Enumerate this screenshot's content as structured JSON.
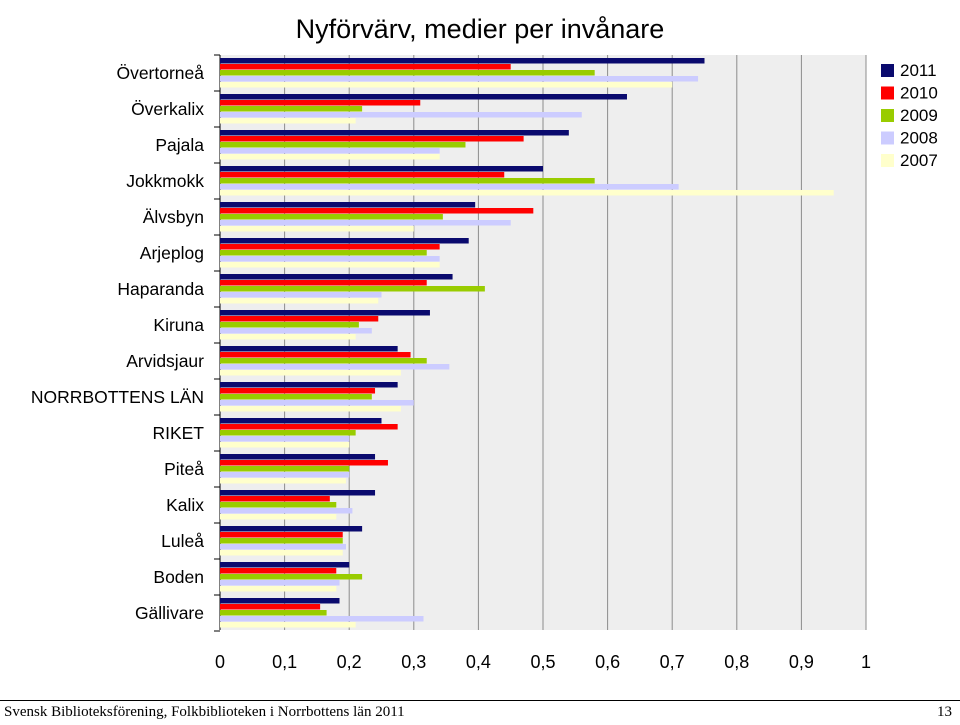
{
  "chart_data": {
    "type": "bar",
    "orientation": "horizontal",
    "title": "Nyförvärv, medier per invånare",
    "categories": [
      "Övertorneå",
      "Överkalix",
      "Pajala",
      "Jokkmokk",
      "Älvsbyn",
      "Arjeplog",
      "Haparanda",
      "Kiruna",
      "Arvidsjaur",
      "NORRBOTTENS LÄN",
      "RIKET",
      "Piteå",
      "Kalix",
      "Luleå",
      "Boden",
      "Gällivare"
    ],
    "series": [
      {
        "name": "2011",
        "color": "#0a0a6e",
        "values": [
          0.75,
          0.63,
          0.54,
          0.5,
          0.395,
          0.385,
          0.36,
          0.325,
          0.275,
          0.275,
          0.25,
          0.24,
          0.24,
          0.22,
          0.2,
          0.185
        ]
      },
      {
        "name": "2010",
        "color": "#ff0000",
        "values": [
          0.45,
          0.31,
          0.47,
          0.44,
          0.485,
          0.34,
          0.32,
          0.245,
          0.295,
          0.24,
          0.275,
          0.26,
          0.17,
          0.19,
          0.18,
          0.155
        ]
      },
      {
        "name": "2009",
        "color": "#99cc00",
        "values": [
          0.58,
          0.22,
          0.38,
          0.58,
          0.345,
          0.32,
          0.41,
          0.215,
          0.32,
          0.235,
          0.21,
          0.2,
          0.18,
          0.19,
          0.22,
          0.165
        ]
      },
      {
        "name": "2008",
        "color": "#ccccff",
        "values": [
          0.74,
          0.56,
          0.34,
          0.71,
          0.45,
          0.34,
          0.25,
          0.235,
          0.355,
          0.3,
          0.2,
          0.2,
          0.205,
          0.195,
          0.185,
          0.315
        ]
      },
      {
        "name": "2007",
        "color": "#ffffcc",
        "values": [
          0.7,
          0.21,
          0.34,
          0.95,
          0.3,
          0.34,
          0.245,
          0.21,
          0.28,
          0.28,
          0.2,
          0.195,
          0.18,
          0.19,
          0.18,
          0.21
        ]
      }
    ],
    "xlim": [
      0,
      1
    ],
    "xticks": [
      "0",
      "0,1",
      "0,2",
      "0,3",
      "0,4",
      "0,5",
      "0,6",
      "0,7",
      "0,8",
      "0,9",
      "1"
    ],
    "grid": "vertical",
    "legend": "top-right",
    "plot_background": "#eeeeee"
  },
  "footer": {
    "source": "Svensk Biblioteksförening, Folkbiblioteken i Norrbottens län 2011",
    "page_number": "13"
  }
}
